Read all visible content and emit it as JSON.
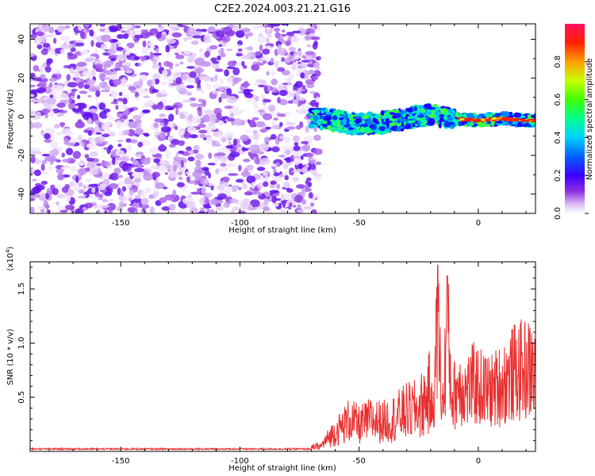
{
  "title": "C2E2.2024.003.21.21.G16",
  "colors": {
    "snr_line": "#e8302f",
    "background": "#ffffff",
    "colormap": [
      "#ffffff",
      "#d9b8f5",
      "#8a2be2",
      "#3c00ff",
      "#0040ff",
      "#00c8ff",
      "#00ffa0",
      "#40ff00",
      "#c8ff00",
      "#ffa000",
      "#ff2000",
      "#ff1060"
    ]
  },
  "chart_data": [
    {
      "type": "heatmap",
      "xlabel": "Height of straight line (km)",
      "ylabel": "Frequency (Hz)",
      "xlim": [
        -188,
        24
      ],
      "ylim": [
        -50,
        48
      ],
      "x_ticks": [
        -150,
        -100,
        -50,
        0
      ],
      "x_tick_labels": [
        "-150",
        "-100",
        "-50",
        "0"
      ],
      "y_ticks": [
        40,
        20,
        0,
        -20,
        -40
      ],
      "y_tick_labels": [
        "40",
        "20",
        "0",
        "-20",
        "-40"
      ],
      "noise_region_x": [
        -188,
        -70
      ],
      "signal_region_x": [
        -70,
        24
      ],
      "signal_center_freq": [
        [
          -70,
          0
        ],
        [
          -60,
          -2
        ],
        [
          -50,
          -4
        ],
        [
          -40,
          -3
        ],
        [
          -30,
          -1
        ],
        [
          -20,
          1
        ],
        [
          -10,
          -1
        ],
        [
          0,
          -2
        ],
        [
          10,
          -1
        ],
        [
          20,
          -2
        ],
        [
          24,
          -2
        ]
      ],
      "colorbar": {
        "label": "Normalized spectral amplitude",
        "range": [
          0,
          1
        ],
        "ticks": [
          0.0,
          0.2,
          0.4,
          0.6,
          0.8
        ],
        "tick_labels": [
          "0.0",
          "0.2",
          "0.4",
          "0.6",
          "0.8"
        ]
      }
    },
    {
      "type": "line",
      "xlabel": "Height of straight line (km)",
      "ylabel": "SNR (10 * v/v)",
      "y_multiplier_label": "(x10",
      "y_multiplier_exp": "4",
      "y_multiplier_close": ")",
      "xlim": [
        -188,
        24
      ],
      "ylim": [
        0,
        1.75
      ],
      "x_ticks": [
        -150,
        -100,
        -50,
        0
      ],
      "x_tick_labels": [
        "-150",
        "-100",
        "-50",
        "0"
      ],
      "y_ticks": [
        0.5,
        1.0,
        1.5
      ],
      "y_tick_labels": [
        "0.5",
        "1.0",
        "1.5"
      ],
      "series": [
        {
          "points": [
            [
              -188,
              0.02
            ],
            [
              -150,
              0.02
            ],
            [
              -100,
              0.02
            ],
            [
              -75,
              0.02
            ],
            [
              -66,
              0.05
            ],
            [
              -62,
              0.15
            ],
            [
              -58,
              0.22
            ],
            [
              -54,
              0.3
            ],
            [
              -50,
              0.25
            ],
            [
              -45,
              0.3
            ],
            [
              -40,
              0.28
            ],
            [
              -35,
              0.32
            ],
            [
              -30,
              0.38
            ],
            [
              -25,
              0.4
            ],
            [
              -22,
              0.5
            ],
            [
              -19,
              0.6
            ],
            [
              -17,
              1.72
            ],
            [
              -15,
              0.55
            ],
            [
              -13,
              1.62
            ],
            [
              -11,
              0.7
            ],
            [
              -8,
              0.9
            ],
            [
              -5,
              0.8
            ],
            [
              -2,
              0.9
            ],
            [
              1,
              0.85
            ],
            [
              5,
              0.8
            ],
            [
              10,
              0.9
            ],
            [
              15,
              1.05
            ],
            [
              20,
              1.1
            ],
            [
              24,
              1.05
            ]
          ]
        }
      ]
    }
  ]
}
